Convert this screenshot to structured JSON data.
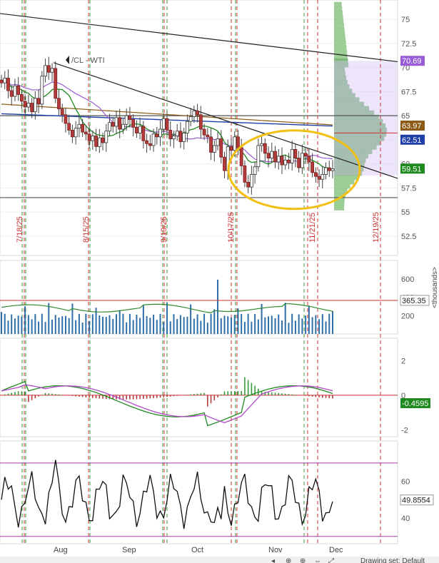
{
  "chart_data": [
    {
      "type": "candlestick",
      "symbol_label": "/CL - WTI",
      "ylim": [
        50.5,
        77
      ],
      "y_ticks": [
        52.5,
        55,
        57.5,
        60,
        62.5,
        65,
        67.5,
        70,
        72.5,
        75
      ],
      "ohlc_closes": [
        68.4,
        68.9,
        67.6,
        67.0,
        68.1,
        67.2,
        66.5,
        65.9,
        66.3,
        65.4,
        66.8,
        66.2,
        69.1,
        70.2,
        69.5,
        69.9,
        66.8,
        65.7,
        65.1,
        64.2,
        63.5,
        62.8,
        63.7,
        64.1,
        63.3,
        63.1,
        62.4,
        62.9,
        61.8,
        62.7,
        62.2,
        63.4,
        64.3,
        63.9,
        64.8,
        63.6,
        64.1,
        65.0,
        64.6,
        63.8,
        63.2,
        63.9,
        62.4,
        62.1,
        61.9,
        63.1,
        62.8,
        63.6,
        64.7,
        63.5,
        62.6,
        62.9,
        63.4,
        62.3,
        63.2,
        64.4,
        64.9,
        65.5,
        65.1,
        63.6,
        63.0,
        62.8,
        61.2,
        61.9,
        62.6,
        60.7,
        59.3,
        61.8,
        61.4,
        62.8,
        61.7,
        59.8,
        58.1,
        57.6,
        58.9,
        59.7,
        61.9,
        62.1,
        61.1,
        60.6,
        61.3,
        60.2,
        60.8,
        59.9,
        60.4,
        60.1,
        61.5,
        60.6,
        59.6,
        61.1,
        60.8,
        60.2,
        59.1,
        58.7,
        58.4,
        58.9,
        59.6,
        59.3,
        59.5
      ],
      "price_badges": [
        {
          "label": "70.69",
          "value": 70.69,
          "color": "#9a5cd6"
        },
        {
          "label": "63.97",
          "value": 63.97,
          "color": "#8b5a14"
        },
        {
          "label": "62.51",
          "value": 62.51,
          "color": "#1f3fa8"
        },
        {
          "label": "59.51",
          "value": 59.51,
          "color": "#1f8a1f"
        }
      ],
      "horizontal_levels": [
        65.0,
        56.5
      ],
      "date_markers": [
        "7/18/25",
        "8/15/25",
        "9/19/25",
        "10/17/25",
        "11/21/25",
        "12/19/25"
      ],
      "x_labels": [
        "Aug",
        "Sep",
        "Oct",
        "Nov",
        "Dec"
      ],
      "annotation": "ellipse around recent consolidation (Oct–Nov)"
    },
    {
      "type": "bar",
      "series_role": "volume",
      "ylim": [
        0,
        800
      ],
      "y_ticks": [
        200,
        400,
        600
      ],
      "unit_label": "<thousands>",
      "last_value_label": "365.35",
      "last_value": 365.35
    },
    {
      "type": "line",
      "series_role": "macd",
      "ylim": [
        -2.4,
        3.3
      ],
      "y_ticks": [
        -2,
        0,
        2
      ],
      "last_value_label": "-0.4595",
      "last_value": -0.4595
    },
    {
      "type": "line",
      "series_role": "oscillator",
      "ylim": [
        26,
        82
      ],
      "y_ticks": [
        40,
        60
      ],
      "overbought": 70,
      "oversold": 30,
      "last_value_label": "49.8554",
      "last_value": 49.8554
    }
  ],
  "footer": {
    "drawing_set_label": "Drawing set: Default"
  }
}
